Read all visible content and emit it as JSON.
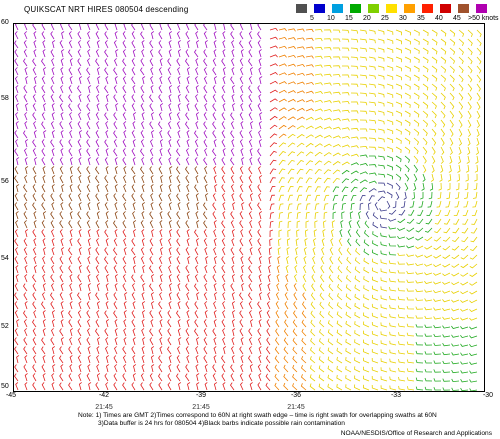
{
  "title": "QUIKSCAT NRT HIRES 080504 descending",
  "legend": {
    "colors": [
      "#505050",
      "#0000cd",
      "#00a0e0",
      "#00aa00",
      "#7fd000",
      "#ffe000",
      "#ffa000",
      "#ff2000",
      "#d00000",
      "#a0522d",
      "#b000b0"
    ],
    "labels": [
      "5",
      "10",
      "15",
      "20",
      "25",
      "30",
      "35",
      "40",
      "45",
      ">50 knots"
    ]
  },
  "map": {
    "lat_labels": [
      "60",
      "58",
      "56",
      "54",
      "52",
      "50"
    ],
    "lon_labels": [
      "-45",
      "-42",
      "-39",
      "-36",
      "-33",
      "-30"
    ],
    "time_labels": [
      "21:45",
      "21:45",
      "21:45"
    ],
    "wind_colors": {
      "weak": "#3a3a8a",
      "green": "#22aa22",
      "yellow": "#e8d000",
      "orange": "#f08000",
      "red": "#e02020",
      "brown": "#8b4513",
      "magenta": "#a010c0"
    }
  },
  "notes": {
    "line1": "Note: 1) Times are GMT 2)Times correspond to 60N at right swath edge – time is right swath for overlapping swaths at 60N",
    "line2": "3)Data buffer is 24 hrs for 080504 4)Black barbs indicate possible rain contamination",
    "credit": "NOAA/NESDIS/Office of Research and Applications"
  }
}
